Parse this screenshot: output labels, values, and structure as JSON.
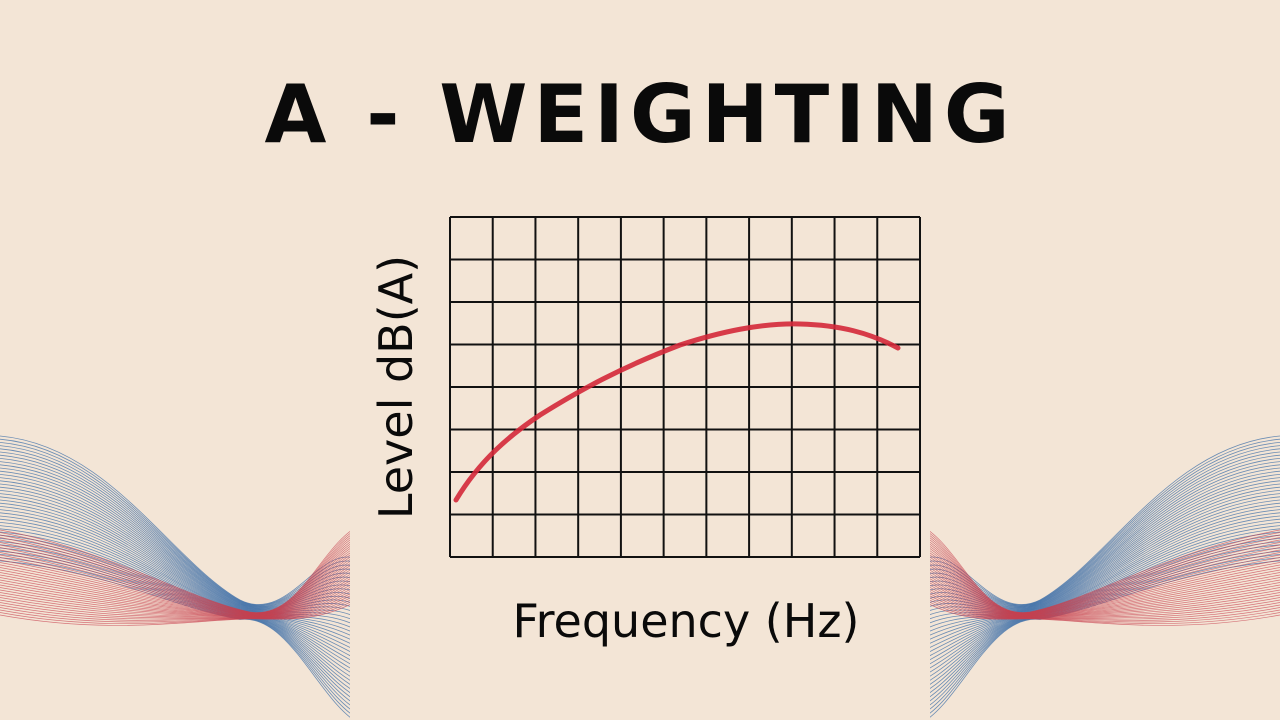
{
  "title": "A - WEIGHTING",
  "y_axis_label": "Level dB(A)",
  "x_axis_label": "Frequency (Hz)"
}
